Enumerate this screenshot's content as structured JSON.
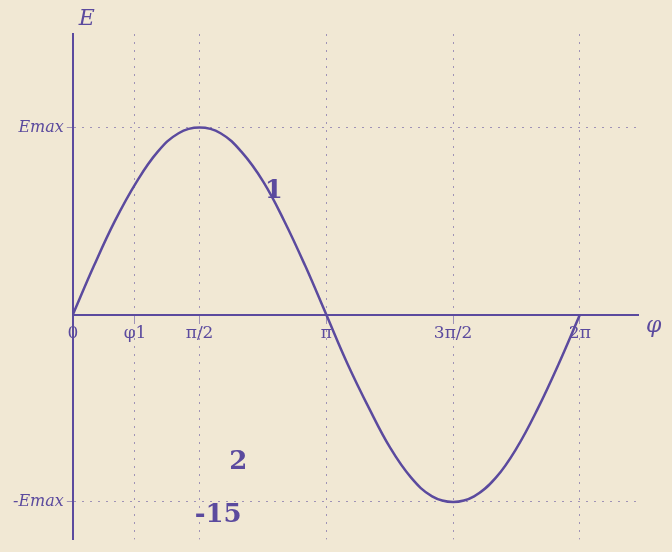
{
  "chart_data": {
    "type": "line",
    "x_label": "φ",
    "y_label": "E",
    "x": [
      0,
      0.26,
      0.52,
      0.79,
      1.05,
      1.31,
      1.57,
      1.83,
      2.09,
      2.36,
      2.62,
      2.88,
      3.14,
      3.4,
      3.67,
      3.93,
      4.19,
      4.45,
      4.71,
      4.97,
      5.24,
      5.5,
      5.76,
      6.02,
      6.28
    ],
    "values": [
      0,
      0.26,
      0.5,
      0.71,
      0.87,
      0.97,
      1,
      0.97,
      0.87,
      0.71,
      0.5,
      0.26,
      0,
      -0.26,
      -0.5,
      -0.71,
      -0.87,
      -0.97,
      -1,
      -0.97,
      -0.87,
      -0.71,
      -0.5,
      -0.26,
      0
    ],
    "color": "#5b4a9e",
    "xlim": [
      0,
      7
    ],
    "xticks": [
      0,
      {
        "value": 0.77,
        "label": "φ1"
      },
      {
        "value": 1.57,
        "label": "π/2"
      },
      {
        "value": 3.14,
        "label": "π"
      },
      {
        "value": 4.71,
        "label": "3π/2"
      },
      {
        "value": 6.28,
        "label": "2π"
      }
    ],
    "ylim": [
      -1.2,
      1.5
    ],
    "yticks": [
      {
        "value": -1,
        "label": "-Emax"
      },
      {
        "value": 1,
        "label": "Emax"
      }
    ],
    "grid": true,
    "annotations": [
      {
        "text": "1",
        "x": 2.49,
        "y": 0.66
      },
      {
        "text": "2",
        "x": 2.05,
        "y": -0.79
      },
      {
        "text": "-15",
        "x": 1.8,
        "y": -1.07
      }
    ]
  }
}
